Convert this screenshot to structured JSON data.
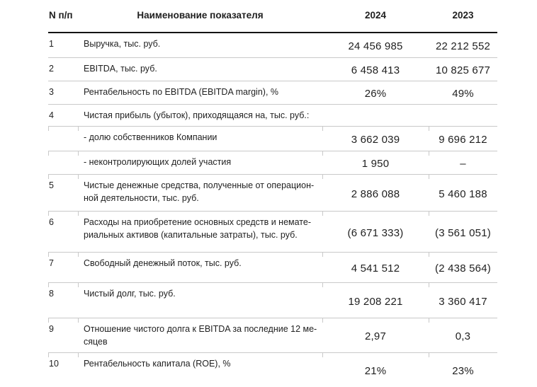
{
  "table": {
    "headers": {
      "num": "N п/п",
      "indicator": "Наименование показателя",
      "col2024": "2024",
      "col2023": "2023"
    },
    "rows": [
      {
        "num": "1",
        "label": "Выручка, тыс. руб.",
        "v2024": "24 456 985",
        "v2023": "22 212 552"
      },
      {
        "num": "2",
        "label": "EBITDA, тыс. руб.",
        "v2024": "6 458 413",
        "v2023": "10 825 677"
      },
      {
        "num": "3",
        "label": "Рентабельность по EBITDA (EBITDA margin), %",
        "v2024": "26%",
        "v2023": "49%"
      },
      {
        "num": "4",
        "label": "Чистая прибыль (убыток), приходящаяся на, тыс. руб.:",
        "v2024": "",
        "v2023": ""
      },
      {
        "num": "",
        "label": "- долю собственников Компании",
        "v2024": "3 662 039",
        "v2023": "9 696 212"
      },
      {
        "num": "",
        "label": "- неконтролирующих долей участия",
        "v2024": "1 950",
        "v2023": "–"
      },
      {
        "num": "5",
        "label": "Чистые денежные средства, полученные от операцион-\nной деятельности, тыс. руб.",
        "v2024": "2 886 088",
        "v2023": "5 460 188"
      },
      {
        "num": "6",
        "label": "Расходы на приобретение основных средств и немате-\nриальных активов (капитальные затраты), тыс. руб.",
        "v2024": "(6 671 333)",
        "v2023": "(3 561 051)"
      },
      {
        "num": "7",
        "label": "Свободный денежный поток, тыс. руб.",
        "v2024": "4 541 512",
        "v2023": "(2 438 564)"
      },
      {
        "num": "8",
        "label": "Чистый долг, тыс. руб.",
        "v2024": "19 208 221",
        "v2023": "3 360 417"
      },
      {
        "num": "9",
        "label": "Отношение чистого долга к EBITDA за последние 12 ме-\nсяцев",
        "v2024": "2,97",
        "v2023": "0,3"
      },
      {
        "num": "10",
        "label": "Рентабельность капитала (ROE), %",
        "v2024": "21%",
        "v2023": "23%"
      }
    ]
  },
  "colors": {
    "text": "#1f1f1f",
    "header_rule": "#141414",
    "row_rule": "#c9c9c9"
  }
}
